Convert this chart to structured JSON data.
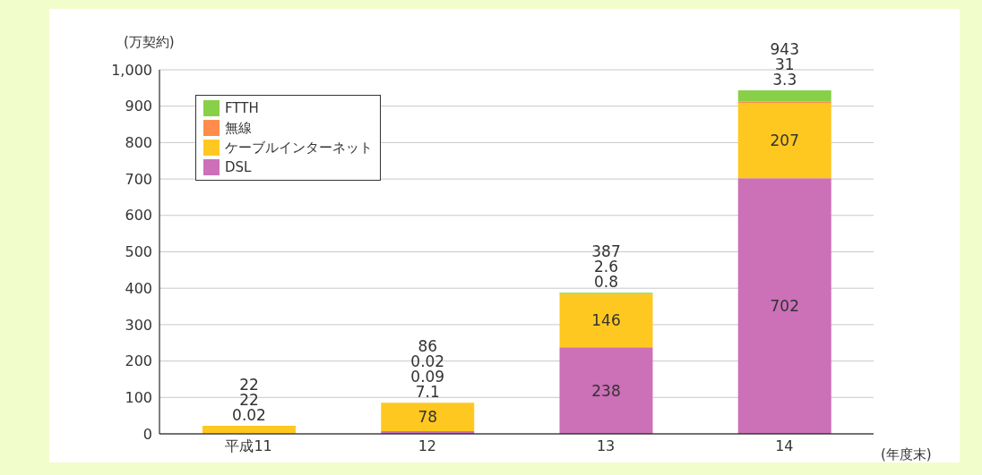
{
  "chart_data": {
    "type": "bar",
    "stacked": true,
    "ylabel": "(万契約)",
    "xlabel": "(年度末)",
    "categories": [
      "平成11",
      "12",
      "13",
      "14"
    ],
    "series": [
      {
        "name": "DSL",
        "color": "#cc70b8",
        "values": [
          0.02,
          7.1,
          238,
          702
        ],
        "value_labels": [
          "0.02",
          "7.1",
          "238",
          "702"
        ]
      },
      {
        "name": "ケーブルインターネット",
        "color": "#ffc820",
        "values": [
          22,
          78,
          146,
          207
        ],
        "value_labels": [
          "22",
          "78",
          "146",
          "207"
        ]
      },
      {
        "name": "無線",
        "color": "#ff8c4c",
        "values": [
          null,
          0.09,
          0.8,
          3.3
        ],
        "value_labels": [
          null,
          "0.09",
          "0.8",
          "3.3"
        ]
      },
      {
        "name": "FTTH",
        "color": "#88d048",
        "values": [
          null,
          0.02,
          2.6,
          31
        ],
        "value_labels": [
          null,
          "0.02",
          "2.6",
          "31"
        ]
      }
    ],
    "totals": [
      "22",
      "86",
      "387",
      "943"
    ],
    "ylim": [
      0,
      1000
    ],
    "yticks": [
      0,
      100,
      200,
      300,
      400,
      500,
      600,
      700,
      800,
      900,
      {
        "value": 1000,
        "label": "1,000"
      }
    ],
    "grid": "y",
    "legend": "top left"
  }
}
